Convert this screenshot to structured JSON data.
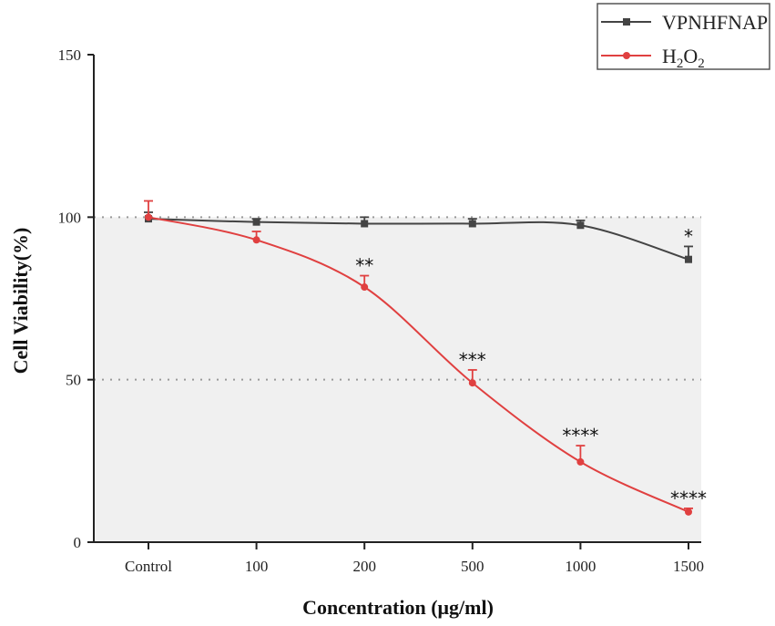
{
  "chart_data": {
    "type": "line",
    "title": "",
    "xlabel": "Concentration (μg/ml)",
    "ylabel": "Cell Viability(%)",
    "categories": [
      "Control",
      "100",
      "200",
      "500",
      "1000",
      "1500"
    ],
    "ylim": [
      0,
      150
    ],
    "yticks": [
      0,
      50,
      100,
      150
    ],
    "reference_lines": [
      50,
      100
    ],
    "legend_position": "top-right",
    "series": [
      {
        "name": "VPNHFNAP",
        "color": "#444444",
        "marker": "square",
        "values": [
          99.5,
          98.5,
          98,
          98,
          97.5,
          87
        ],
        "errors": [
          2,
          1,
          2,
          1.5,
          1.5,
          4
        ],
        "significance": [
          "",
          "",
          "",
          "",
          "",
          "*"
        ]
      },
      {
        "name": "H2O2",
        "color": "#e04040",
        "marker": "circle",
        "values": [
          100,
          93,
          78.5,
          49,
          24.7,
          9.3
        ],
        "errors": [
          5,
          2.6,
          3.5,
          4,
          5,
          1.1
        ],
        "significance": [
          "",
          "",
          "**",
          "***",
          "****",
          "****"
        ]
      }
    ]
  }
}
